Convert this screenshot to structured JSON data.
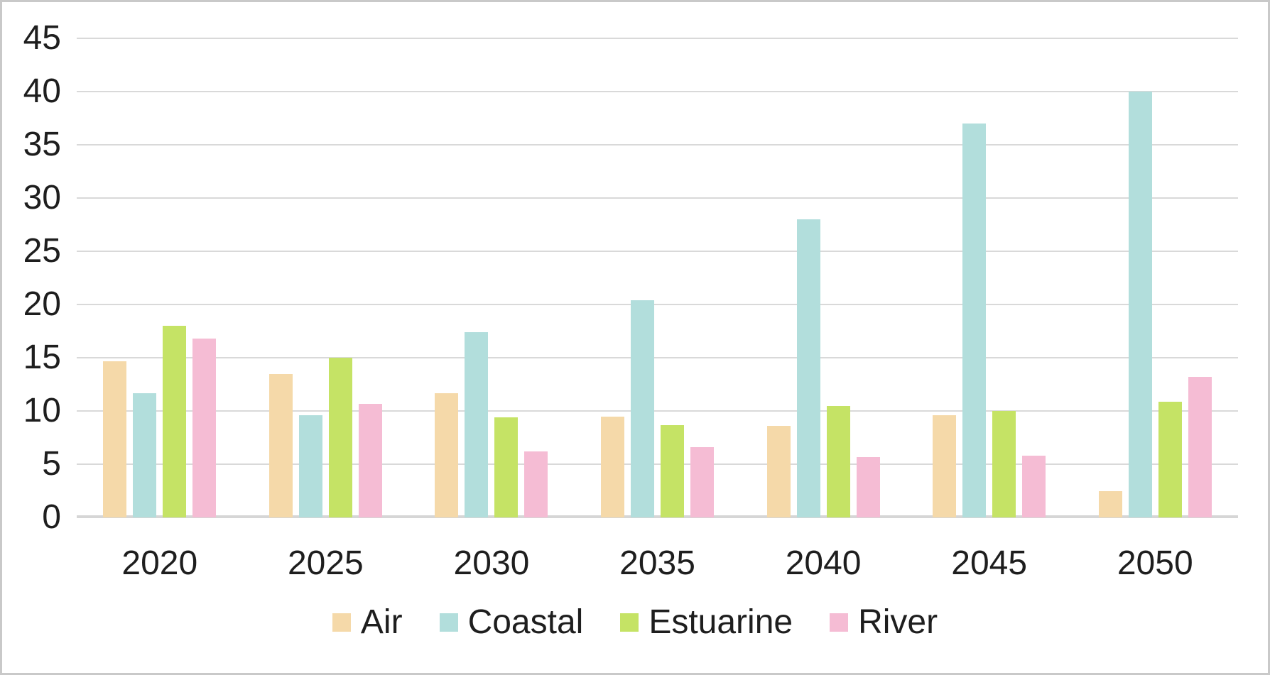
{
  "chart_data": {
    "type": "bar",
    "title": "",
    "xlabel": "",
    "ylabel": "",
    "categories": [
      "2020",
      "2025",
      "2030",
      "2035",
      "2040",
      "2045",
      "2050"
    ],
    "series": [
      {
        "name": "Air",
        "color": "#F5D9A9",
        "values": [
          14.7,
          13.5,
          11.7,
          9.5,
          8.6,
          9.6,
          2.5
        ]
      },
      {
        "name": "Coastal",
        "color": "#B2DEDC",
        "values": [
          11.7,
          9.6,
          17.4,
          20.4,
          28.0,
          37.0,
          40.0
        ]
      },
      {
        "name": "Estuarine",
        "color": "#C5E365",
        "values": [
          18.0,
          15.0,
          9.4,
          8.7,
          10.5,
          10.0,
          10.9
        ]
      },
      {
        "name": "River",
        "color": "#F5BCD4",
        "values": [
          16.8,
          10.7,
          6.2,
          6.6,
          5.7,
          5.8,
          13.2
        ]
      }
    ],
    "ylim": [
      0,
      45
    ],
    "yticks": [
      0,
      5,
      10,
      15,
      20,
      25,
      30,
      35,
      40,
      45
    ],
    "grid": true,
    "legend_position": "bottom",
    "legend_labels": [
      "Air",
      "Coastal",
      "Estuarine",
      "River"
    ]
  },
  "colors": {
    "background": "#FFFFFF",
    "border": "#C9C9C9",
    "gridline": "#D9D9D9",
    "axis_baseline": "#D6D6D6",
    "text": "#1E1E1E"
  }
}
